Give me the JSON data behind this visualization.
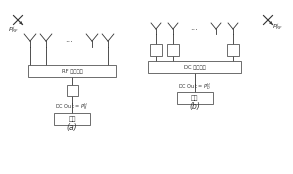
{
  "bg_color": "#ffffff",
  "line_color": "#333333",
  "box_color": "#555555",
  "text_color": "#333333",
  "fig_bg": "#ffffff",
  "label_a": "(a)",
  "label_b": "(b)",
  "rf_label": "RF 组合电路",
  "dc_label": "DC 组合电路",
  "app_label_a": "应用",
  "app_label_b": "应用",
  "dc_out_a": "DC Out = $P_R^H$",
  "dc_out_b": "DC Out = $P_D^H$",
  "p_rf_label_a": "$P_{RF}^{i}$",
  "p_rf_label_b": "$P_{RF}^{i}$"
}
